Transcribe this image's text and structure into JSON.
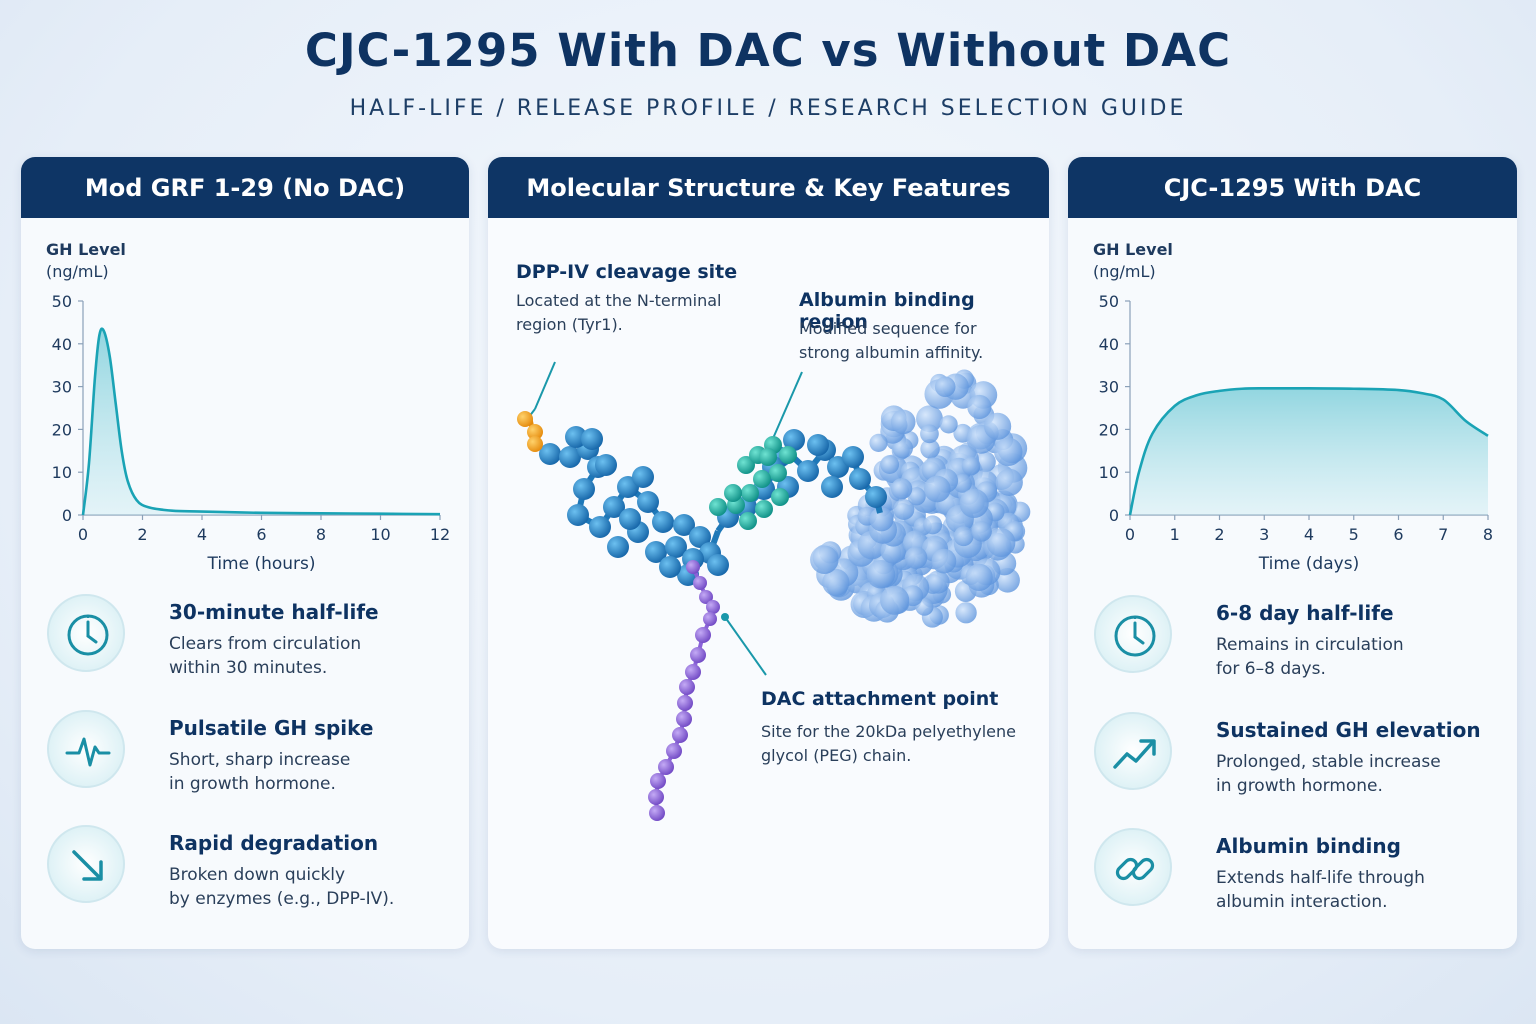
{
  "header": {
    "title": "CJC-1295 With DAC vs Without DAC",
    "subtitle": "HALF-LIFE  /  RELEASE PROFILE  /  RESEARCH SELECTION GUIDE"
  },
  "colors": {
    "navy": "#0e3565",
    "teal": "#1aa3b5",
    "molecule_blue": "#1e7fc1",
    "cleavage_orange": "#f2a21b",
    "dac_purple": "#8a62d8",
    "albumin_blue": "#6fa6e6",
    "binding_teal": "#1db7a6"
  },
  "left_panel": {
    "header": "Mod GRF 1-29 (No DAC)",
    "ylabel_line1": "GH Level",
    "ylabel_line2": "(ng/mL)",
    "features": [
      {
        "icon": "clock-icon",
        "title": "30-minute half-life",
        "line1": "Clears from circulation",
        "line2": "within 30 minutes."
      },
      {
        "icon": "pulse-icon",
        "title": "Pulsatile GH spike",
        "line1": "Short, sharp increase",
        "line2": "in growth hormone."
      },
      {
        "icon": "arrow-down-right-icon",
        "title": "Rapid degradation",
        "line1": "Broken down quickly",
        "line2": "by enzymes (e.g., DPP-IV)."
      }
    ]
  },
  "middle_panel": {
    "header": "Molecular Structure & Key Features",
    "annotations": {
      "dpp": {
        "title": "DPP-IV cleavage site",
        "line1": "Located at the N-terminal",
        "line2": "region (Tyr1)."
      },
      "albumin": {
        "title": "Albumin binding region",
        "line1": "Modified sequence for",
        "line2": "strong albumin affinity."
      },
      "dac": {
        "title": "DAC attachment point",
        "line1": "Site for the 20kDa pelyethylene",
        "line2": "glycol (PEG) chain."
      }
    }
  },
  "right_panel": {
    "header": "CJC-1295 With DAC",
    "ylabel_line1": "GH Level",
    "ylabel_line2": "(ng/mL)",
    "features": [
      {
        "icon": "clock-icon",
        "title": "6-8 day half-life",
        "line1": "Remains in circulation",
        "line2": "for 6–8 days."
      },
      {
        "icon": "trend-up-icon",
        "title": "Sustained GH elevation",
        "line1": "Prolonged, stable increase",
        "line2": "in growth hormone."
      },
      {
        "icon": "link-icon",
        "title": "Albumin binding",
        "line1": "Extends half-life through",
        "line2": "albumin interaction."
      }
    ]
  },
  "chart_data": [
    {
      "type": "area",
      "xlabel": "Time (hours)",
      "ylabel": "GH Level (ng/mL)",
      "xlim": [
        0,
        12
      ],
      "ylim": [
        0,
        50
      ],
      "xticks": [
        0,
        2,
        4,
        6,
        8,
        10,
        12
      ],
      "yticks": [
        0,
        10,
        20,
        30,
        40,
        50
      ],
      "x": [
        0,
        0.2,
        0.4,
        0.55,
        0.7,
        0.9,
        1.1,
        1.3,
        1.5,
        1.8,
        2.2,
        3,
        4,
        6,
        8,
        10,
        12
      ],
      "y": [
        0,
        12,
        32,
        42,
        43,
        37,
        26,
        15,
        8,
        3.5,
        1.8,
        1,
        0.8,
        0.5,
        0.4,
        0.3,
        0.2
      ]
    },
    {
      "type": "area",
      "xlabel": "Time (days)",
      "ylabel": "GH Level (ng/mL)",
      "xlim": [
        0,
        8
      ],
      "ylim": [
        0,
        50
      ],
      "xticks": [
        0,
        1,
        2,
        3,
        4,
        5,
        6,
        7,
        8
      ],
      "yticks": [
        0,
        10,
        20,
        30,
        40,
        50
      ],
      "x": [
        0,
        0.2,
        0.5,
        1,
        1.5,
        2,
        2.5,
        3,
        4,
        5,
        6,
        6.5,
        7,
        7.5,
        8
      ],
      "y": [
        0,
        10,
        19,
        25.5,
        28,
        29,
        29.5,
        29.6,
        29.6,
        29.5,
        29.2,
        28.5,
        27,
        22,
        18.5
      ]
    }
  ]
}
